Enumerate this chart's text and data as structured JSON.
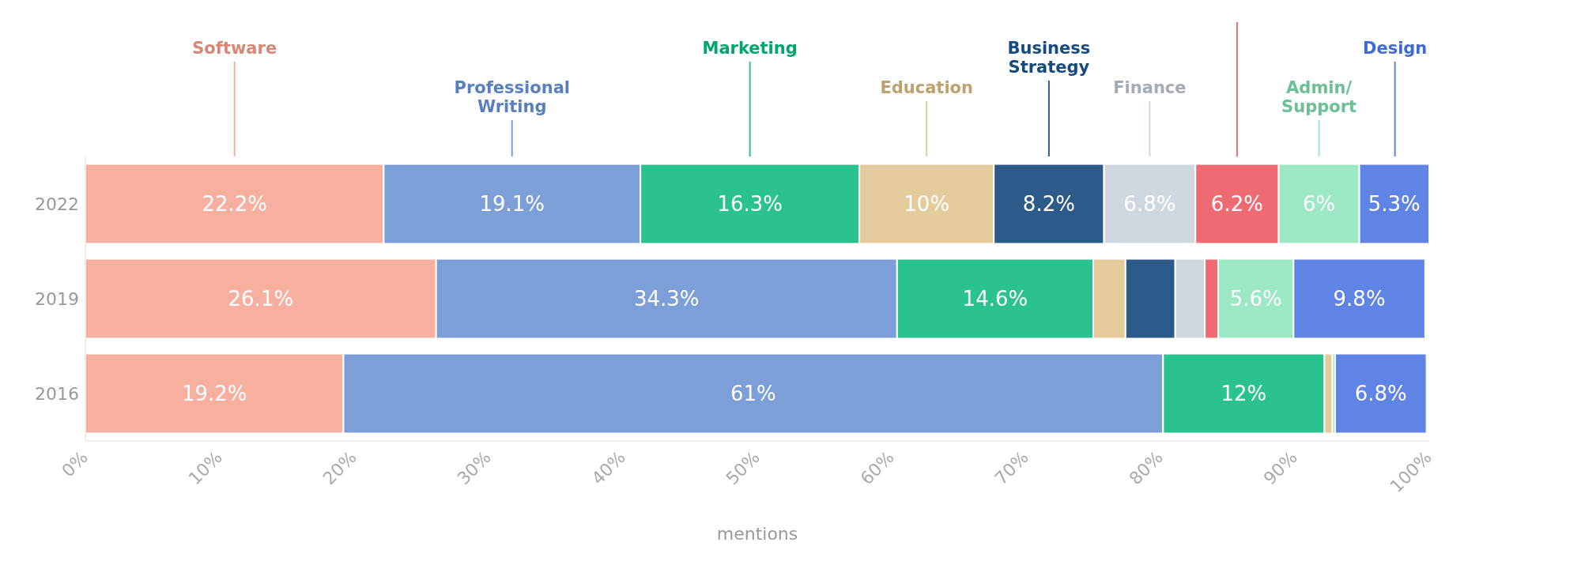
{
  "chart_data": {
    "type": "bar",
    "orientation": "horizontal",
    "stacked": true,
    "categories": [
      "2022",
      "2019",
      "2016"
    ],
    "xlabel": "mentions",
    "xlim": [
      0,
      100
    ],
    "xticks": [
      {
        "value": 0,
        "label": "0%"
      },
      {
        "value": 10,
        "label": "10%"
      },
      {
        "value": 20,
        "label": "20%"
      },
      {
        "value": 30,
        "label": "30%"
      },
      {
        "value": 40,
        "label": "40%"
      },
      {
        "value": 50,
        "label": "50%"
      },
      {
        "value": 60,
        "label": "60%"
      },
      {
        "value": 70,
        "label": "70%"
      },
      {
        "value": 80,
        "label": "80%"
      },
      {
        "value": 90,
        "label": "90%"
      },
      {
        "value": 100,
        "label": "100%"
      }
    ],
    "series": [
      {
        "name": "Software",
        "color": "#f7afa0",
        "values": [
          22.2,
          26.1,
          19.2
        ],
        "value_labels": [
          "22.2%",
          "26.1%",
          "19.2%"
        ]
      },
      {
        "name": "Professional Writing",
        "color": "#7b9fd6",
        "values": [
          19.1,
          34.3,
          61
        ],
        "value_labels": [
          "19.1%",
          "34.3%",
          "61%"
        ]
      },
      {
        "name": "Marketing",
        "color": "#2ac28e",
        "values": [
          16.3,
          14.6,
          12
        ],
        "value_labels": [
          "16.3%",
          "14.6%",
          "12%"
        ]
      },
      {
        "name": "Education",
        "color": "#e4cb9c",
        "values": [
          10,
          2.4,
          0.6
        ],
        "value_labels": [
          "10%",
          null,
          null
        ]
      },
      {
        "name": "Business Strategy",
        "color": "#2c5b8a",
        "values": [
          8.2,
          3.7,
          0
        ],
        "value_labels": [
          "8.2%",
          null,
          null
        ]
      },
      {
        "name": "Finance",
        "color": "#cfd7e0",
        "values": [
          6.8,
          2.2,
          0
        ],
        "value_labels": [
          "6.8%",
          null,
          null
        ]
      },
      {
        "color": "#ee6b73",
        "values": [
          6.2,
          1.0,
          0
        ],
        "value_labels": [
          "6.2%",
          null,
          null
        ]
      },
      {
        "name": "Admin/ Support",
        "color": "#9de8c4",
        "values": [
          6,
          5.6,
          0.2
        ],
        "value_labels": [
          "6%",
          "5.6%",
          null
        ]
      },
      {
        "name": "Design",
        "color": "#5f84e6",
        "values": [
          5.3,
          9.8,
          6.8
        ],
        "value_labels": [
          "5.3%",
          "9.8%",
          "6.8%"
        ]
      }
    ]
  }
}
